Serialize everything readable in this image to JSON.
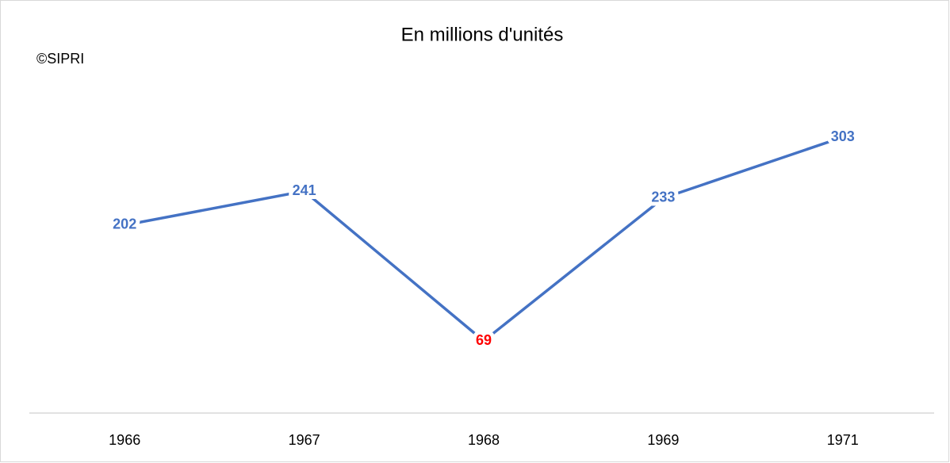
{
  "chart_data": {
    "type": "line",
    "title": "En millions d'unités",
    "annotation": "©SIPRI",
    "categories": [
      "1966",
      "1967",
      "1968",
      "1969",
      "1971"
    ],
    "values": [
      202,
      241,
      69,
      233,
      303
    ],
    "color": "#4472c4",
    "value_label_colors": [
      "#4472c4",
      "#4472c4",
      "#ff0000",
      "#4472c4",
      "#4472c4"
    ]
  }
}
